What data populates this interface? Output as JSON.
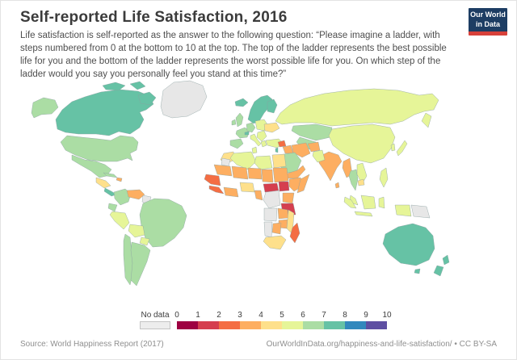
{
  "header": {
    "title": "Self-reported Life Satisfaction, 2016",
    "subtitle": "Life satisfaction is self-reported as the answer to the following question: “Please imagine a ladder, with steps numbered from 0 at the bottom to 10 at the top. The top of the ladder represents the best possible life for you and the bottom of the ladder represents the worst possible life for you. On which step of the ladder would you say you personally feel you stand at this time?”",
    "logo": {
      "line1": "Our World",
      "line2": "in Data",
      "bg": "#1d3d63",
      "accent": "#d7413a"
    }
  },
  "legend": {
    "no_data_label": "No data",
    "no_data_color": "#ededed",
    "no_data_border": "#c4c4c4",
    "ticks": [
      "0",
      "1",
      "2",
      "3",
      "4",
      "5",
      "6",
      "7",
      "8",
      "9",
      "10"
    ],
    "bin_colors": [
      "#9e0142",
      "#d53e4f",
      "#f46d43",
      "#fdae61",
      "#fee08b",
      "#e6f598",
      "#abdda4",
      "#66c2a5",
      "#3288bd",
      "#5e4fa2"
    ]
  },
  "footer": {
    "source": "Source: World Happiness Report (2017)",
    "url": "OurWorldInData.org/happiness-and-life-satisfaction/",
    "separator": "•",
    "license": "CC BY-SA"
  },
  "chart_data": {
    "type": "choropleth-map",
    "title": "Self-reported Life Satisfaction, 2016",
    "scale": {
      "min": 0,
      "max": 10,
      "bin_size": 1,
      "legend_position": "bottom-center"
    },
    "palette": {
      "0-1": "#9e0142",
      "1-2": "#d53e4f",
      "2-3": "#f46d43",
      "3-4": "#fdae61",
      "4-5": "#fee08b",
      "5-6": "#e6f598",
      "6-7": "#abdda4",
      "7-8": "#66c2a5",
      "8-9": "#3288bd",
      "9-10": "#5e4fa2",
      "no-data": "#e7e7e7"
    },
    "regions": [
      {
        "name": "Canada",
        "band": "7-8"
      },
      {
        "name": "Alaska (US)",
        "band": "6-7"
      },
      {
        "name": "United States",
        "band": "6-7"
      },
      {
        "name": "Greenland",
        "band": "no-data"
      },
      {
        "name": "Mexico",
        "band": "6-7"
      },
      {
        "name": "Guatemala/Honduras",
        "band": "4-5"
      },
      {
        "name": "Costa Rica/Panama",
        "band": "7-8"
      },
      {
        "name": "Cuba",
        "band": "6-7"
      },
      {
        "name": "Haiti/Dominican Rep.",
        "band": "3-4"
      },
      {
        "name": "Colombia",
        "band": "6-7"
      },
      {
        "name": "Venezuela",
        "band": "3-4"
      },
      {
        "name": "Guyana/Suriname",
        "band": "no-data"
      },
      {
        "name": "Ecuador",
        "band": "6-7"
      },
      {
        "name": "Peru",
        "band": "5-6"
      },
      {
        "name": "Brazil",
        "band": "6-7"
      },
      {
        "name": "Bolivia",
        "band": "5-6"
      },
      {
        "name": "Paraguay",
        "band": "5-6"
      },
      {
        "name": "Chile",
        "band": "6-7"
      },
      {
        "name": "Argentina",
        "band": "6-7"
      },
      {
        "name": "Iceland",
        "band": "7-8"
      },
      {
        "name": "Norway/Sweden",
        "band": "7-8"
      },
      {
        "name": "Finland",
        "band": "7-8"
      },
      {
        "name": "Denmark",
        "band": "7-8"
      },
      {
        "name": "United Kingdom",
        "band": "6-7"
      },
      {
        "name": "Ireland",
        "band": "6-7"
      },
      {
        "name": "France",
        "band": "6-7"
      },
      {
        "name": "Switzerland",
        "band": "7-8"
      },
      {
        "name": "Germany/Central Europe",
        "band": "6-7"
      },
      {
        "name": "Spain/Portugal",
        "band": "6-7"
      },
      {
        "name": "Italy",
        "band": "5-6"
      },
      {
        "name": "Poland/Baltics",
        "band": "5-6"
      },
      {
        "name": "Ukraine",
        "band": "4-5"
      },
      {
        "name": "Balkans",
        "band": "5-6"
      },
      {
        "name": "Greece",
        "band": "5-6"
      },
      {
        "name": "Turkey",
        "band": "5-6"
      },
      {
        "name": "Russia",
        "band": "5-6"
      },
      {
        "name": "Kazakhstan",
        "band": "6-7"
      },
      {
        "name": "Central Asia",
        "band": "6-7"
      },
      {
        "name": "China/Mongolia",
        "band": "5-6"
      },
      {
        "name": "Japan",
        "band": "5-6"
      },
      {
        "name": "South Korea",
        "band": "5-6"
      },
      {
        "name": "India",
        "band": "3-4"
      },
      {
        "name": "Pakistan",
        "band": "5-6"
      },
      {
        "name": "Afghanistan",
        "band": "3-4"
      },
      {
        "name": "Iran",
        "band": "3-4"
      },
      {
        "name": "Iraq",
        "band": "3-4"
      },
      {
        "name": "Syria",
        "band": "2-3"
      },
      {
        "name": "Israel",
        "band": "7-8"
      },
      {
        "name": "Saudi Arabia",
        "band": "6-7"
      },
      {
        "name": "Yemen/Oman",
        "band": "3-4"
      },
      {
        "name": "Sri Lanka",
        "band": "3-4"
      },
      {
        "name": "Myanmar",
        "band": "3-4"
      },
      {
        "name": "Thailand",
        "band": "6-7"
      },
      {
        "name": "Vietnam/Laos",
        "band": "5-6"
      },
      {
        "name": "Cambodia",
        "band": "4-5"
      },
      {
        "name": "Malaysia",
        "band": "5-6"
      },
      {
        "name": "Philippines",
        "band": "5-6"
      },
      {
        "name": "Indonesia",
        "band": "5-6"
      },
      {
        "name": "Papua New Guinea",
        "band": "no-data"
      },
      {
        "name": "Australia",
        "band": "7-8"
      },
      {
        "name": "New Zealand",
        "band": "7-8"
      },
      {
        "name": "Morocco",
        "band": "4-5"
      },
      {
        "name": "Western Sahara",
        "band": "no-data"
      },
      {
        "name": "Algeria",
        "band": "5-6"
      },
      {
        "name": "Tunisia",
        "band": "5-6"
      },
      {
        "name": "Libya",
        "band": "5-6"
      },
      {
        "name": "Egypt",
        "band": "4-5"
      },
      {
        "name": "Mauritania",
        "band": "3-4"
      },
      {
        "name": "Mali",
        "band": "3-4"
      },
      {
        "name": "Niger",
        "band": "3-4"
      },
      {
        "name": "Chad",
        "band": "3-4"
      },
      {
        "name": "Sudan",
        "band": "3-4"
      },
      {
        "name": "Senegal/Guinea",
        "band": "2-3"
      },
      {
        "name": "Sierra Leone/Liberia",
        "band": "2-3"
      },
      {
        "name": "Ivory Coast/Ghana",
        "band": "3-4"
      },
      {
        "name": "Nigeria",
        "band": "4-5"
      },
      {
        "name": "Cameroon",
        "band": "3-4"
      },
      {
        "name": "Central African Republic",
        "band": "1-2"
      },
      {
        "name": "South Sudan",
        "band": "1-2"
      },
      {
        "name": "Ethiopia",
        "band": "3-4"
      },
      {
        "name": "Somalia",
        "band": "3-4"
      },
      {
        "name": "Kenya/Uganda",
        "band": "3-4"
      },
      {
        "name": "Tanzania",
        "band": "1-2"
      },
      {
        "name": "DR Congo",
        "band": "no-data"
      },
      {
        "name": "Angola",
        "band": "no-data"
      },
      {
        "name": "Namibia",
        "band": "no-data"
      },
      {
        "name": "Zambia",
        "band": "3-4"
      },
      {
        "name": "Zimbabwe",
        "band": "3-4"
      },
      {
        "name": "Mozambique",
        "band": "4-5"
      },
      {
        "name": "Botswana",
        "band": "3-4"
      },
      {
        "name": "South Africa",
        "band": "4-5"
      },
      {
        "name": "Madagascar",
        "band": "2-3"
      }
    ]
  }
}
